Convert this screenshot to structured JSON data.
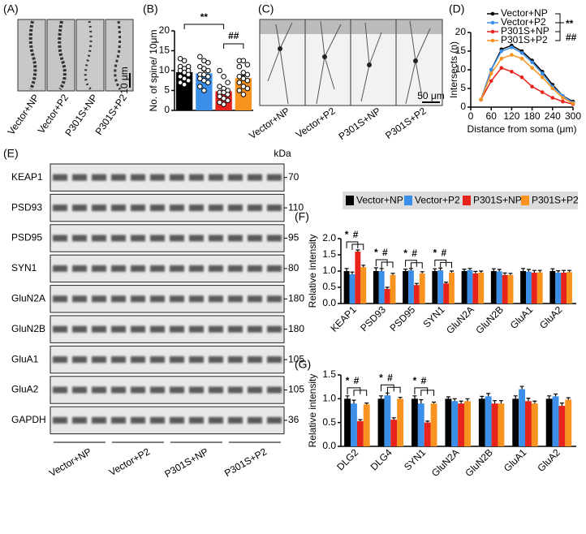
{
  "panels": {
    "A": {
      "label": "(A)",
      "groups": [
        "Vector+NP",
        "Vector+P2",
        "P301S+NP",
        "P301S+P2"
      ],
      "scale": "10 μm"
    },
    "C": {
      "label": "(C)",
      "groups": [
        "Vector+NP",
        "Vector+P2",
        "P301S+NP",
        "P301S+P2"
      ],
      "scale": "50 μm"
    },
    "E": {
      "label": "(E)",
      "unit": "kDa",
      "proteins": [
        {
          "name": "KEAP1",
          "kda": 70
        },
        {
          "name": "PSD93",
          "kda": 110
        },
        {
          "name": "PSD95",
          "kda": 95
        },
        {
          "name": "SYN1",
          "kda": 80
        },
        {
          "name": "GluN2A",
          "kda": 180
        },
        {
          "name": "GluN2B",
          "kda": 180
        },
        {
          "name": "GluA1",
          "kda": 105
        },
        {
          "name": "GluA2",
          "kda": 105
        },
        {
          "name": "GAPDH",
          "kda": 36
        }
      ],
      "groups": [
        "Vector+NP",
        "Vector+P2",
        "P301S+NP",
        "P301S+P2"
      ]
    }
  },
  "chart_data": [
    {
      "type": "bar",
      "panel_label": "(B)",
      "ylabel": "No. of spine/ 10μm",
      "values": [
        9.6,
        9.3,
        4.8,
        8.1
      ],
      "errors": [
        0.6,
        0.7,
        0.7,
        0.7
      ],
      "colors": [
        "#000000",
        "#3b8fe8",
        "#e8231c",
        "#f7931e"
      ],
      "points": [
        [
          13,
          12.5,
          11,
          11,
          10.5,
          10,
          10,
          9.5,
          9,
          8.5,
          8,
          7.5,
          7,
          6.5
        ],
        [
          13.5,
          12.5,
          12,
          11,
          10.5,
          10,
          9,
          9,
          8.5,
          8,
          7.5,
          7,
          6,
          5
        ],
        [
          10,
          8.5,
          7,
          6,
          5.5,
          5,
          4.5,
          4.5,
          4,
          3.5,
          3,
          2.5,
          2,
          1.5
        ],
        [
          12.5,
          12.5,
          11.5,
          11,
          9.5,
          9,
          8.5,
          8,
          7.5,
          7,
          6,
          5.5,
          5,
          4
        ]
      ],
      "annotations": [
        "**",
        "##"
      ],
      "ylim": [
        0,
        20
      ],
      "yticks": [
        0,
        5,
        10,
        15,
        20
      ]
    },
    {
      "type": "line",
      "panel_label": "(D)",
      "ylabel": "Intersects (n)",
      "xlabel": "Distance from soma (μm)",
      "x": [
        30,
        60,
        90,
        120,
        150,
        180,
        210,
        240,
        270,
        300
      ],
      "series": [
        {
          "name": "Vector+NP",
          "color": "#000000",
          "values": [
            2,
            10,
            15.5,
            16.5,
            15,
            12.5,
            9.5,
            6,
            3,
            1.5
          ]
        },
        {
          "name": "Vector+P2",
          "color": "#3b8fe8",
          "values": [
            2,
            10,
            15,
            16,
            14.5,
            12,
            9,
            5.5,
            3,
            1.2
          ]
        },
        {
          "name": "P301S+NP",
          "color": "#e8231c",
          "values": [
            2,
            7,
            10.5,
            9.5,
            8,
            5.5,
            4,
            2.5,
            1.5,
            0.8
          ]
        },
        {
          "name": "P301S+P2",
          "color": "#f7931e",
          "values": [
            2,
            9,
            13,
            14,
            13,
            10.5,
            8,
            5,
            2.5,
            1
          ]
        }
      ],
      "annotations": [
        "**",
        "##"
      ],
      "xlim": [
        0,
        300
      ],
      "xticks": [
        0,
        60,
        120,
        180,
        240,
        300
      ],
      "ylim": [
        0,
        20
      ],
      "yticks": [
        0,
        5,
        10,
        15,
        20
      ]
    },
    {
      "type": "bar",
      "panel_label": "(F)",
      "ylabel": "Relative intensity",
      "categories": [
        "KEAP1",
        "PSD93",
        "PSD95",
        "SYN1",
        "GluN2A",
        "GluN2B",
        "GluA1",
        "GluA2"
      ],
      "series": [
        {
          "name": "Vector+NP",
          "color": "#000000",
          "values": [
            1,
            1,
            1,
            1,
            1,
            1,
            1,
            1
          ],
          "errors": [
            0.08,
            0.1,
            0.06,
            0.07,
            0.06,
            0.07,
            0.08,
            0.07
          ]
        },
        {
          "name": "Vector+P2",
          "color": "#3b8fe8",
          "values": [
            0.9,
            1.0,
            1.02,
            1.02,
            1.03,
            0.99,
            0.98,
            0.95
          ],
          "errors": [
            0.07,
            0.08,
            0.06,
            0.07,
            0.05,
            0.06,
            0.07,
            0.06
          ]
        },
        {
          "name": "P301S+NP",
          "color": "#e8231c",
          "values": [
            1.6,
            0.45,
            0.57,
            0.62,
            0.93,
            0.88,
            0.95,
            0.95
          ],
          "errors": [
            0.05,
            0.05,
            0.05,
            0.04,
            0.06,
            0.06,
            0.07,
            0.07
          ]
        },
        {
          "name": "P301S+P2",
          "color": "#f7931e",
          "values": [
            1.12,
            0.88,
            0.93,
            0.95,
            0.95,
            0.88,
            0.96,
            0.97
          ],
          "errors": [
            0.06,
            0.05,
            0.05,
            0.05,
            0.05,
            0.05,
            0.06,
            0.05
          ]
        }
      ],
      "annotations": [
        [
          "*",
          "#"
        ],
        [
          "*",
          "#"
        ],
        [
          "*",
          "#"
        ],
        [
          "*",
          "#"
        ],
        null,
        null,
        null,
        null
      ],
      "ylim": [
        0,
        2
      ],
      "yticks": [
        {
          "value": 0,
          "label": "0.0"
        },
        {
          "value": 0.5,
          "label": "0.5"
        },
        {
          "value": 1,
          "label": "1.0"
        },
        {
          "value": 1.5,
          "label": "1.5"
        },
        {
          "value": 2,
          "label": "2.0"
        }
      ]
    },
    {
      "type": "bar",
      "panel_label": "(G)",
      "ylabel": "Relative intensity",
      "categories": [
        "DLG2",
        "DLG4",
        "SYN1",
        "GluN2A",
        "GluN2B",
        "GluA1",
        "GluA2"
      ],
      "series": [
        {
          "color": "#000000",
          "values": [
            1,
            1,
            1,
            1,
            1,
            1,
            1
          ],
          "errors": [
            0.06,
            0.06,
            0.06,
            0.04,
            0.05,
            0.06,
            0.06
          ]
        },
        {
          "color": "#3b8fe8",
          "values": [
            0.9,
            1.07,
            0.9,
            0.95,
            1.05,
            1.2,
            1.05
          ],
          "errors": [
            0.07,
            0.05,
            0.08,
            0.05,
            0.06,
            0.06,
            0.05
          ]
        },
        {
          "color": "#e8231c",
          "values": [
            0.53,
            0.56,
            0.5,
            0.9,
            0.9,
            0.95,
            0.85
          ],
          "errors": [
            0.03,
            0.04,
            0.03,
            0.05,
            0.06,
            0.06,
            0.06
          ]
        },
        {
          "color": "#f7931e",
          "values": [
            0.88,
            1.0,
            0.9,
            0.95,
            0.9,
            0.9,
            0.98
          ],
          "errors": [
            0.03,
            0.03,
            0.03,
            0.05,
            0.06,
            0.05,
            0.04
          ]
        }
      ],
      "annotations": [
        [
          "*",
          "#"
        ],
        [
          "*",
          "#"
        ],
        [
          "*",
          "#"
        ],
        null,
        null,
        null,
        null
      ],
      "ylim": [
        0,
        1.5
      ],
      "yticks": [
        {
          "value": 0,
          "label": "0.0"
        },
        {
          "value": 0.5,
          "label": "0.5"
        },
        {
          "value": 1,
          "label": "1.0"
        },
        {
          "value": 1.5,
          "label": "1.5"
        }
      ]
    }
  ]
}
